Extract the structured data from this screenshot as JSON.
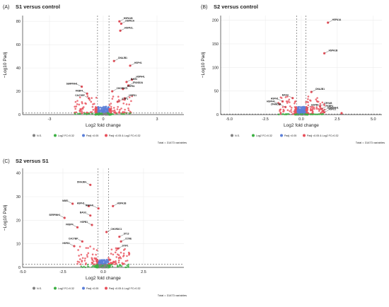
{
  "panels": [
    {
      "id": "A",
      "panel_letter": "(A)",
      "title": "S1 versus control",
      "xlabel": "Log2 fold change",
      "ylabel": "−Log10 Padj",
      "total": "Total = 31473 variables",
      "legend": [
        "N.S.",
        "Log2 FC>0.32",
        "Padj <0.05",
        "Padj <0.05 & Log2 FC>0.32"
      ],
      "colors": {
        "ns": "#808080",
        "fc": "#3cb043",
        "p": "#5b7fd8",
        "both": "#e8505b"
      },
      "chart_data": {
        "type": "scatter",
        "title": "S1 versus control",
        "xlabel": "Log2 fold change",
        "ylabel": "−Log10 Padj",
        "xlim": [
          -4.5,
          4.5
        ],
        "ylim": [
          0,
          85
        ],
        "xticks": [
          -3,
          0,
          3
        ],
        "yticks": [
          0,
          20,
          40,
          60,
          80
        ],
        "fc_cutoff": 0.32,
        "p_cutoff_y": 1.3,
        "labeled_points": [
          {
            "x": 0.9,
            "y": 80,
            "label": "HSPA1B"
          },
          {
            "x": 1.0,
            "y": 78,
            "label": "HSPA1A"
          },
          {
            "x": 0.95,
            "y": 72,
            "label": "HSPA1L"
          },
          {
            "x": 0.6,
            "y": 46,
            "label": "DNAJB1"
          },
          {
            "x": 1.5,
            "y": 42,
            "label": "HSPH1"
          },
          {
            "x": 1.6,
            "y": 30,
            "label": "HSPA4L"
          },
          {
            "x": 1.3,
            "y": 28,
            "label": "BAG3"
          },
          {
            "x": 1.4,
            "y": 25,
            "label": "ZFAND2A"
          },
          {
            "x": 1.1,
            "y": 22,
            "label": "HSPB1"
          },
          {
            "x": 0.5,
            "y": 20,
            "label": "CHORDC1"
          },
          {
            "x": -1.2,
            "y": 24,
            "label": "SERPINH1"
          },
          {
            "x": -0.9,
            "y": 18,
            "label": "FKBP4"
          },
          {
            "x": -0.8,
            "y": 14,
            "label": "CACYBP"
          },
          {
            "x": 1.2,
            "y": 14,
            "label": "HSPD1"
          },
          {
            "x": 0.8,
            "y": 11,
            "label": "STIP1"
          }
        ]
      }
    },
    {
      "id": "B",
      "panel_letter": "(B)",
      "title": "S2 versus control",
      "xlabel": "Log2 fold change",
      "ylabel": "−Log10 Padj",
      "total": "Total = 31473 variables",
      "legend": [
        "N.S.",
        "Log2 FC>0.32",
        "Padj <0.05",
        "Padj <0.05 & Log2 FC>0.32"
      ],
      "colors": {
        "ns": "#808080",
        "fc": "#3cb043",
        "p": "#5b7fd8",
        "both": "#e8505b"
      },
      "chart_data": {
        "type": "scatter",
        "title": "S2 versus control",
        "xlabel": "Log2 fold change",
        "ylabel": "−Log10 Padj",
        "xlim": [
          -5.6,
          5.6
        ],
        "ylim": [
          0,
          210
        ],
        "xticks": [
          -5.0,
          -2.5,
          0.0,
          2.5,
          5.0
        ],
        "yticks": [
          0,
          50,
          100,
          150,
          200
        ],
        "fc_cutoff": 0.32,
        "p_cutoff_y": 1.3,
        "labeled_points": [
          {
            "x": 1.85,
            "y": 195,
            "label": "HSPA1A"
          },
          {
            "x": 1.6,
            "y": 130,
            "label": "HSPA1B"
          },
          {
            "x": 0.7,
            "y": 48,
            "label": "DNAJB1"
          },
          {
            "x": -0.6,
            "y": 35,
            "label": "BAG3"
          },
          {
            "x": -1.3,
            "y": 28,
            "label": "HSPH1"
          },
          {
            "x": -1.5,
            "y": 22,
            "label": "HSPA4L"
          },
          {
            "x": -1.1,
            "y": 16,
            "label": "ZFAND2A"
          },
          {
            "x": 0.4,
            "y": 14,
            "label": "HSPB1"
          },
          {
            "x": 1.3,
            "y": 18,
            "label": "CRYAB"
          },
          {
            "x": 1.4,
            "y": 12,
            "label": "FKBP4"
          },
          {
            "x": 1.5,
            "y": 8,
            "label": "SERPINH1"
          },
          {
            "x": 1.6,
            "y": 5,
            "label": "HSPD1"
          },
          {
            "x": 2.8,
            "y": 3,
            "label": ""
          }
        ]
      }
    },
    {
      "id": "C",
      "panel_letter": "(C)",
      "title": "S2 versus S1",
      "xlabel": "Log2 fold change",
      "ylabel": "−Log10 Padj",
      "total": "Total = 31473 variables",
      "legend": [
        "N.S.",
        "Log2 FC>0.32",
        "Padj <0.05",
        "Padj <0.05 & Log2 FC>0.32"
      ],
      "colors": {
        "ns": "#808080",
        "fc": "#3cb043",
        "p": "#5b7fd8",
        "both": "#e8505b"
      },
      "chart_data": {
        "type": "scatter",
        "title": "S2 versus S1",
        "xlabel": "Log2 fold change",
        "ylabel": "−Log10 Padj",
        "xlim": [
          -5.0,
          5.0
        ],
        "ylim": [
          0,
          42
        ],
        "xticks": [
          -5.0,
          -2.5,
          0.0,
          2.5
        ],
        "yticks": [
          0,
          10,
          20,
          30,
          40
        ],
        "fc_cutoff": 0.32,
        "p_cutoff_y": 1.3,
        "labeled_points": [
          {
            "x": -0.8,
            "y": 35,
            "label": "DNAJB4"
          },
          {
            "x": -1.9,
            "y": 27,
            "label": "NBE1"
          },
          {
            "x": -0.9,
            "y": 26,
            "label": "HSPH1"
          },
          {
            "x": -0.3,
            "y": 25,
            "label": "HSPA4L"
          },
          {
            "x": 0.6,
            "y": 26,
            "label": "HSPA1B"
          },
          {
            "x": -0.8,
            "y": 22,
            "label": "BAG3"
          },
          {
            "x": -2.4,
            "y": 21,
            "label": "SERPINH1"
          },
          {
            "x": -0.7,
            "y": 18,
            "label": "HSPB1"
          },
          {
            "x": -1.6,
            "y": 17,
            "label": "FKBP4"
          },
          {
            "x": 0.2,
            "y": 15,
            "label": "CHORDC1"
          },
          {
            "x": 1.0,
            "y": 13,
            "label": "ST13"
          },
          {
            "x": 1.1,
            "y": 11,
            "label": "CCNE"
          },
          {
            "x": -1.3,
            "y": 11,
            "label": "CACYBP"
          },
          {
            "x": -1.8,
            "y": 9,
            "label": "HSPD1"
          },
          {
            "x": 0.9,
            "y": 8,
            "label": "STIP1"
          }
        ]
      }
    }
  ]
}
